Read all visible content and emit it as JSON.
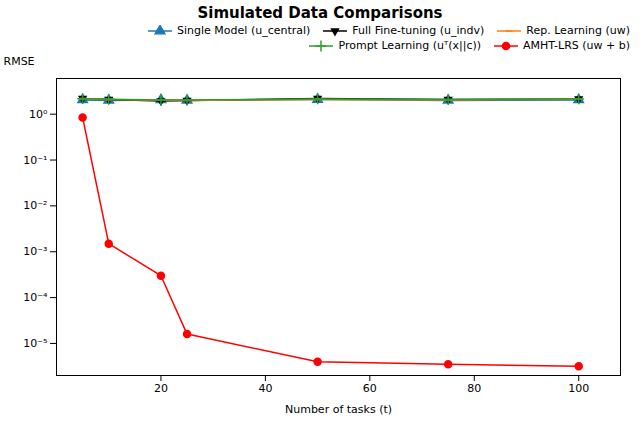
{
  "chart_data": {
    "type": "line",
    "title": "Simulated Data Comparisons",
    "xlabel": "Number of tasks (t)",
    "ylabel": "RMSE",
    "x": [
      5,
      10,
      20,
      25,
      50,
      75,
      100
    ],
    "series": [
      {
        "name": "Single Model (u_central)",
        "color": "#1f77b4",
        "marker": "triangle-up",
        "values": [
          2.05,
          2.0,
          2.05,
          2.0,
          2.1,
          2.0,
          2.05
        ],
        "errors": [
          0.08,
          0.05,
          0.04,
          0.04,
          0.05,
          0.04,
          0.04
        ]
      },
      {
        "name": "Full Fine-tuning (u_indv)",
        "color": "#000000",
        "marker": "triangle-down",
        "values": [
          2.2,
          2.1,
          1.95,
          2.0,
          2.2,
          2.1,
          2.15
        ],
        "errors": [
          0.12,
          0.08,
          0.05,
          0.05,
          0.07,
          0.06,
          0.05
        ]
      },
      {
        "name": "Rep. Learning (uw)",
        "color": "#ff7f0e",
        "marker": "hline",
        "values": [
          2.15,
          2.08,
          2.02,
          2.0,
          2.1,
          2.05,
          2.12
        ],
        "errors": [
          0.07,
          0.05,
          0.03,
          0.03,
          0.04,
          0.03,
          0.03
        ]
      },
      {
        "name": "Prompt Learning (uᵀ(x||c))",
        "color": "#2ca02c",
        "marker": "plus",
        "values": [
          2.18,
          2.12,
          2.05,
          2.03,
          2.15,
          2.08,
          2.15
        ],
        "errors": [
          0.07,
          0.05,
          0.03,
          0.03,
          0.04,
          0.03,
          0.03
        ]
      },
      {
        "name": "AMHT-LRS (uw + b)",
        "color": "#ff0000",
        "marker": "circle",
        "values": [
          0.85,
          0.0015,
          0.0003,
          1.6e-05,
          4e-06,
          3.5e-06,
          3.2e-06
        ],
        "errors": [
          0.05,
          0.00015,
          2e-05,
          1.5e-06,
          3e-07,
          3e-07,
          2e-07
        ]
      }
    ],
    "xlim": [
      0,
      108
    ],
    "xticks": [
      20,
      40,
      60,
      80,
      100
    ],
    "ylim": [
      2e-06,
      6.0
    ],
    "yticks": [
      {
        "value": 1e-05,
        "label": "10⁻⁵"
      },
      {
        "value": 0.0001,
        "label": "10⁻⁴"
      },
      {
        "value": 0.001,
        "label": "10⁻³"
      },
      {
        "value": 0.01,
        "label": "10⁻²"
      },
      {
        "value": 0.1,
        "label": "10⁻¹"
      },
      {
        "value": 1,
        "label": "10⁰"
      }
    ],
    "log": "y",
    "grid": false,
    "legend": "top"
  }
}
